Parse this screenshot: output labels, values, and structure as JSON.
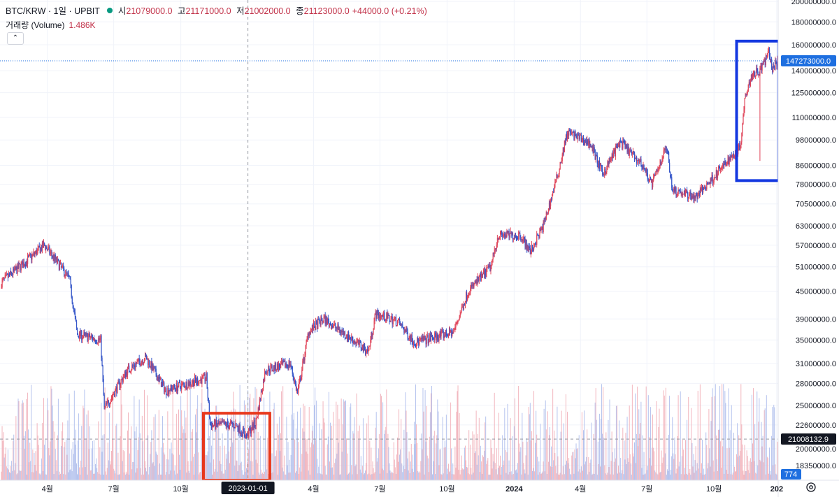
{
  "header": {
    "symbol": "BTC/KRW · 1일 · UPBIT",
    "ohlc": [
      {
        "label": "시",
        "value": "21079000.0"
      },
      {
        "label": "고",
        "value": "21171000.0"
      },
      {
        "label": "저",
        "value": "21002000.0"
      },
      {
        "label": "종",
        "value": "21123000.0"
      }
    ],
    "change": "+44000.0 (+0.21%)",
    "volume_label": "거래량 (Volume)",
    "volume_value": "1.486K",
    "collapse_icon": "chevron-up-icon",
    "settings_icon": "gear-icon"
  },
  "colors": {
    "up": "#e0455a",
    "down": "#3556c9",
    "volume_up": "#f2b6be",
    "volume_down": "#b5c3ee",
    "price_tag": "#1e6fe0",
    "highlight_red": "#e8371b",
    "highlight_blue": "#1438e0",
    "crosshair_tag": "#131722"
  },
  "chart_data": {
    "type": "candlestick",
    "yscale": "log",
    "ylim": [
      17000000,
      200000000
    ],
    "y_tick_labels": [
      "200000000.0",
      "180000000.0",
      "160000000.0",
      "140000000.0",
      "125000000.0",
      "110000000.0",
      "98000000.0",
      "86000000.0",
      "78000000.0",
      "70500000.0",
      "63000000.0",
      "57000000.0",
      "51000000.0",
      "45000000.0",
      "39000000.0",
      "35000000.0",
      "31000000.0",
      "28000000.0",
      "25000000.0",
      "22600000.0",
      "20000000.0",
      "18350000.0"
    ],
    "y_ticks": [
      200000000,
      180000000,
      160000000,
      140000000,
      125000000,
      110000000,
      98000000,
      86000000,
      78000000,
      70500000,
      63000000,
      57000000,
      51000000,
      45000000,
      39000000,
      35000000,
      31000000,
      28000000,
      25000000,
      22600000,
      20000000,
      18350000
    ],
    "x_range": [
      "2022-01-28",
      "2024-12-28"
    ],
    "x_tick_labels": [
      {
        "label": "4월",
        "date": "2022-04-01",
        "bold": false
      },
      {
        "label": "7월",
        "date": "2022-07-01",
        "bold": false
      },
      {
        "label": "10월",
        "date": "2022-10-01",
        "bold": false
      },
      {
        "label": "4월",
        "date": "2023-04-01",
        "bold": false
      },
      {
        "label": "7월",
        "date": "2023-07-01",
        "bold": false
      },
      {
        "label": "10월",
        "date": "2023-10-01",
        "bold": false
      },
      {
        "label": "2024",
        "date": "2024-01-01",
        "bold": true
      },
      {
        "label": "4월",
        "date": "2024-04-01",
        "bold": false
      },
      {
        "label": "7월",
        "date": "2024-07-01",
        "bold": false
      },
      {
        "label": "10월",
        "date": "2024-10-01",
        "bold": false
      },
      {
        "label": "202",
        "date": "2024-12-26",
        "bold": true
      }
    ],
    "price_path": [
      [
        "2022-01-28",
        47000000
      ],
      [
        "2022-03-28",
        57000000
      ],
      [
        "2022-05-01",
        48000000
      ],
      [
        "2022-05-12",
        36000000
      ],
      [
        "2022-06-13",
        35000000
      ],
      [
        "2022-06-18",
        24500000
      ],
      [
        "2022-07-20",
        30000000
      ],
      [
        "2022-08-14",
        32000000
      ],
      [
        "2022-09-10",
        27000000
      ],
      [
        "2022-11-05",
        28800000
      ],
      [
        "2022-11-10",
        22600000
      ],
      [
        "2022-12-15",
        22600000
      ],
      [
        "2022-12-30",
        21300000
      ],
      [
        "2023-01-12",
        23000000
      ],
      [
        "2023-01-25",
        30000000
      ],
      [
        "2023-02-28",
        31000000
      ],
      [
        "2023-03-10",
        26500000
      ],
      [
        "2023-03-25",
        36500000
      ],
      [
        "2023-04-15",
        39000000
      ],
      [
        "2023-05-15",
        36000000
      ],
      [
        "2023-06-15",
        33000000
      ],
      [
        "2023-06-25",
        40000000
      ],
      [
        "2023-07-25",
        38500000
      ],
      [
        "2023-08-18",
        34500000
      ],
      [
        "2023-10-10",
        36500000
      ],
      [
        "2023-10-30",
        45000000
      ],
      [
        "2023-11-30",
        51000000
      ],
      [
        "2023-12-10",
        60000000
      ],
      [
        "2024-01-10",
        60000000
      ],
      [
        "2024-01-23",
        55000000
      ],
      [
        "2024-02-10",
        63000000
      ],
      [
        "2024-02-28",
        80000000
      ],
      [
        "2024-03-14",
        102000000
      ],
      [
        "2024-04-15",
        96000000
      ],
      [
        "2024-05-01",
        82000000
      ],
      [
        "2024-05-25",
        97000000
      ],
      [
        "2024-06-25",
        86000000
      ],
      [
        "2024-07-08",
        78000000
      ],
      [
        "2024-07-28",
        95000000
      ],
      [
        "2024-08-05",
        76000000
      ],
      [
        "2024-09-06",
        73000000
      ],
      [
        "2024-10-15",
        86000000
      ],
      [
        "2024-11-06",
        95000000
      ],
      [
        "2024-11-13",
        125000000
      ],
      [
        "2024-11-23",
        138000000
      ],
      [
        "2024-12-03",
        140000000
      ],
      [
        "2024-12-16",
        154000000
      ],
      [
        "2024-12-20",
        140000000
      ],
      [
        "2024-12-27",
        147273000
      ]
    ],
    "wick_event": {
      "date": "2024-12-03",
      "low": 88000000
    },
    "last_price": 147273000,
    "last_price_label": "147273000.0",
    "crosshair_price": 21008132.9,
    "crosshair_price_label": "21008132.9",
    "crosshair_date": "2023-01-01",
    "crosshair_date_label": "2023-01-01",
    "volume_tag": "774",
    "annotations": [
      {
        "kind": "red-box",
        "from": "2022-11-01",
        "to": "2023-01-31",
        "price_high": 24000000,
        "price_low": 17000000
      },
      {
        "kind": "blue-box",
        "from": "2024-11-01",
        "to": "2024-12-29",
        "price_high": 163000000,
        "price_low": 79500000
      }
    ]
  }
}
